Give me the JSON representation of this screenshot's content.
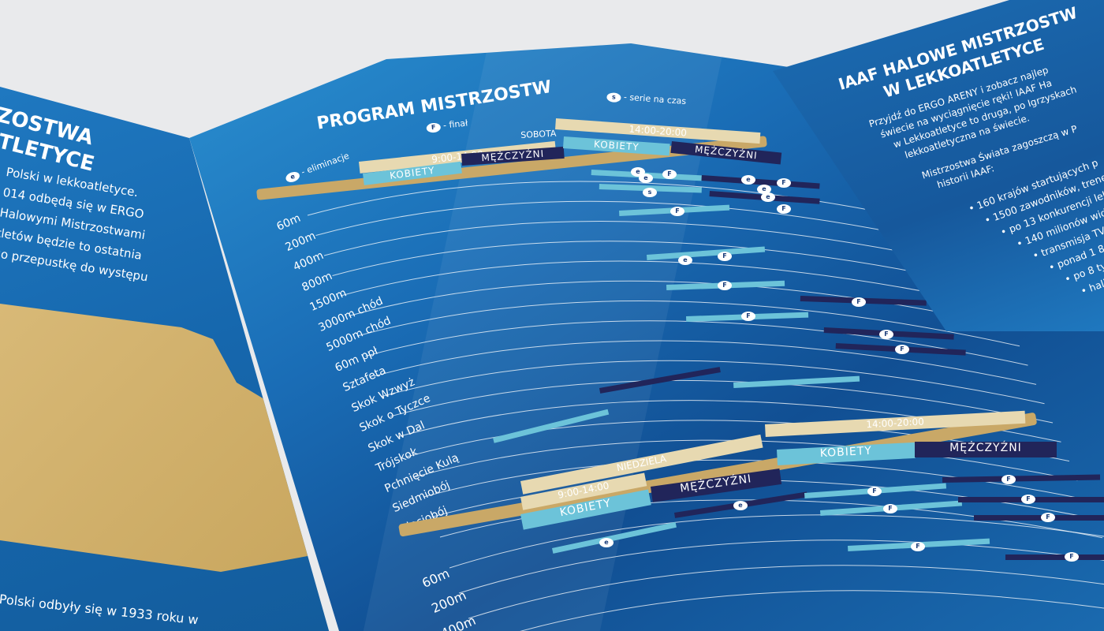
{
  "left_panel": {
    "title_lines": [
      "ZOSTWA",
      "TLETYCE"
    ],
    "paragraph": [
      "Polski w lekkoatletyce.",
      "014 odbędą się w ERGO",
      "Halowymi Mistrzostwami",
      "tletów będzie to ostatnia",
      "go przepustkę do występu"
    ],
    "bottom_text": [
      "Polski odbyły się w 1933 roku w"
    ]
  },
  "middle_panel": {
    "title": "PROGRAM MISTRZOSTW",
    "legend": {
      "e": "- eliminacje",
      "f": "- finał",
      "s": "- serie na czas"
    },
    "saturday": {
      "day": "SOBOTA",
      "session1": "9:00-14:00",
      "session2": "14:00-20:00",
      "women": "KOBIETY",
      "men": "MĘŻCZYŹNI"
    },
    "sunday": {
      "day": "NIEDZIELA",
      "session1": "9:00-14:00",
      "session2": "14:00-20:00",
      "women": "KOBIETY",
      "men": "MĘŻCZYŹNI"
    },
    "events": [
      "60m",
      "200m",
      "400m",
      "800m",
      "1500m",
      "3000m chód",
      "5000m chód",
      "60m ppł",
      "Sztafeta",
      "Skok Wzwyż",
      "Skok o Tyczce",
      "Skok w Dal",
      "Trójskok",
      "Pchnięcie Kulą",
      "Siedmiobój",
      "Pięciobój"
    ],
    "sunday_events": [
      "60m",
      "200m",
      "400m"
    ],
    "dot_labels": {
      "e": "e",
      "f": "F",
      "s": "s"
    }
  },
  "right_panel": {
    "title_lines": [
      "IAAF HALOWE MISTRZOSTW",
      "W LEKKOATLETYCE"
    ],
    "paragraph": [
      "Przyjdź do ERGO ARENY i zobacz najlep",
      "świecie na wyciągnięcie ręki! IAAF Ha",
      "w Lekkoatletyce to druga, po Igrzyskach",
      "lekkoatletyczna na świecie."
    ],
    "paragraph2": [
      "Mistrzostwa Świata zagoszczą w P",
      "historii IAAF:"
    ],
    "bullets": [
      "160 krajów startujących p",
      "1500 zawodników, trene",
      "po 13 konkurencji lekk",
      "140 milionów widzó",
      "transmisja TV na ż",
      "ponad 1 800 go",
      "po 8 tys. kibic",
      "hali ERGO A"
    ]
  },
  "colors": {
    "blue": "#1a6db6",
    "gold": "#c9a867",
    "cream": "#e7d9b1",
    "light_blue": "#6cc3d9",
    "navy": "#21255a"
  }
}
